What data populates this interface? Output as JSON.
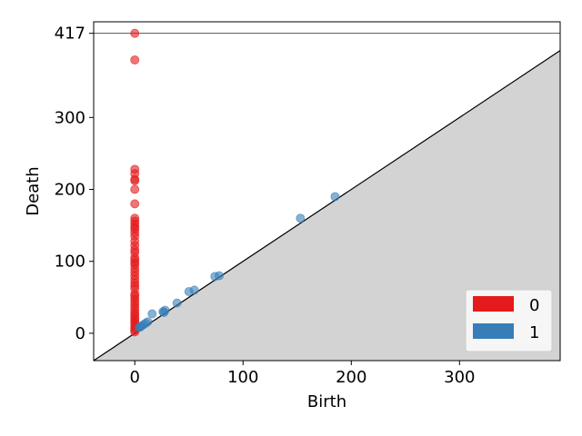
{
  "chart_data": {
    "type": "scatter",
    "title": "",
    "xlabel": "Birth",
    "ylabel": "Death",
    "xlim": [
      -38,
      393
    ],
    "ylim": [
      -38,
      433
    ],
    "x_ticks": [
      0,
      100,
      200,
      300
    ],
    "y_ticks": [
      0,
      100,
      200,
      300,
      417
    ],
    "x_tick_labels": [
      "0",
      "100",
      "200",
      "300"
    ],
    "y_tick_labels": [
      "0",
      "100",
      "200",
      "300",
      "417"
    ],
    "infinity_value": 417,
    "grid": false,
    "legend_position": "bottom-right",
    "series": [
      {
        "name": "0",
        "color": "#e41a1c",
        "points": [
          [
            0,
            417
          ],
          [
            0,
            380
          ],
          [
            0,
            228
          ],
          [
            0,
            222
          ],
          [
            0,
            214
          ],
          [
            0,
            212
          ],
          [
            0,
            200
          ],
          [
            0,
            180
          ],
          [
            0,
            160
          ],
          [
            0,
            156
          ],
          [
            0,
            152
          ],
          [
            0,
            148
          ],
          [
            0,
            145
          ],
          [
            0,
            140
          ],
          [
            0,
            135
          ],
          [
            0,
            128
          ],
          [
            0,
            122
          ],
          [
            0,
            116
          ],
          [
            0,
            112
          ],
          [
            0,
            105
          ],
          [
            0,
            102
          ],
          [
            0,
            98
          ],
          [
            0,
            95
          ],
          [
            0,
            90
          ],
          [
            0,
            85
          ],
          [
            0,
            80
          ],
          [
            0,
            75
          ],
          [
            0,
            70
          ],
          [
            0,
            66
          ],
          [
            0,
            62
          ],
          [
            0,
            55
          ],
          [
            0,
            52
          ],
          [
            0,
            48
          ],
          [
            0,
            44
          ],
          [
            0,
            40
          ],
          [
            0,
            36
          ],
          [
            0,
            32
          ],
          [
            0,
            28
          ],
          [
            0,
            25
          ],
          [
            0,
            22
          ],
          [
            0,
            19
          ],
          [
            0,
            16
          ],
          [
            0,
            13
          ],
          [
            0,
            10
          ],
          [
            0,
            7
          ],
          [
            0,
            4
          ],
          [
            0,
            2
          ]
        ]
      },
      {
        "name": "1",
        "color": "#377eb8",
        "points": [
          [
            185,
            190
          ],
          [
            153,
            160
          ],
          [
            78,
            80
          ],
          [
            74,
            79
          ],
          [
            55,
            60
          ],
          [
            50,
            58
          ],
          [
            39,
            42
          ],
          [
            28,
            32
          ],
          [
            26,
            30
          ],
          [
            27,
            29
          ],
          [
            16,
            27
          ],
          [
            12,
            16
          ],
          [
            10,
            14
          ],
          [
            8,
            12
          ],
          [
            6,
            10
          ],
          [
            5,
            9
          ],
          [
            4,
            8
          ]
        ]
      }
    ]
  }
}
